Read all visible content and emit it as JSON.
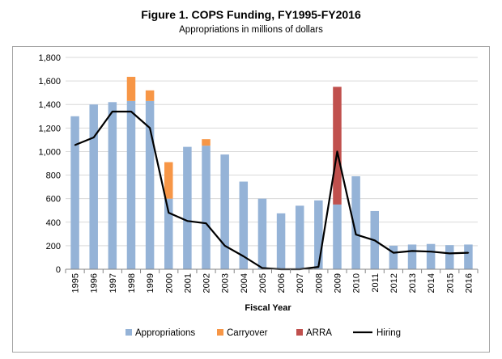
{
  "chart_data": {
    "type": "bar",
    "title": "Figure 1. COPS Funding, FY1995-FY2016",
    "subtitle": "Appropriations in millions of dollars",
    "xlabel": "Fiscal Year",
    "ylabel": "",
    "ylim": [
      0,
      1800
    ],
    "yticks": [
      0,
      200,
      400,
      600,
      800,
      1000,
      1200,
      1400,
      1600,
      1800
    ],
    "ytick_labels": [
      "0",
      "200",
      "400",
      "600",
      "800",
      "1,000",
      "1,200",
      "1,400",
      "1,600",
      "1,800"
    ],
    "grid": true,
    "legend_position": "bottom",
    "categories": [
      "1995",
      "1996",
      "1997",
      "1998",
      "1999",
      "2000",
      "2001",
      "2002",
      "2003",
      "2004",
      "2005",
      "2006",
      "2007",
      "2008",
      "2009",
      "2010",
      "2011",
      "2012",
      "2013",
      "2014",
      "2015",
      "2016"
    ],
    "series": [
      {
        "name": "Appropriations",
        "kind": "stacked-bar",
        "color": "#95b3d7",
        "values": [
          1300,
          1400,
          1420,
          1430,
          1430,
          600,
          1040,
          1050,
          975,
          745,
          600,
          475,
          540,
          585,
          550,
          790,
          495,
          200,
          210,
          215,
          205,
          210
        ]
      },
      {
        "name": "Carryover",
        "kind": "stacked-bar",
        "color": "#f79646",
        "values": [
          0,
          0,
          0,
          205,
          90,
          310,
          0,
          55,
          0,
          0,
          0,
          0,
          0,
          0,
          0,
          0,
          0,
          0,
          0,
          0,
          0,
          0
        ]
      },
      {
        "name": "ARRA",
        "kind": "stacked-bar",
        "color": "#c0504d",
        "values": [
          0,
          0,
          0,
          0,
          0,
          0,
          0,
          0,
          0,
          0,
          0,
          0,
          0,
          0,
          1000,
          0,
          0,
          0,
          0,
          0,
          0,
          0
        ]
      },
      {
        "name": "Hiring",
        "kind": "line",
        "color": "#000000",
        "values": [
          1055,
          1120,
          1340,
          1340,
          1200,
          480,
          410,
          390,
          200,
          110,
          10,
          0,
          0,
          20,
          1000,
          295,
          245,
          140,
          155,
          150,
          135,
          140
        ]
      }
    ]
  }
}
